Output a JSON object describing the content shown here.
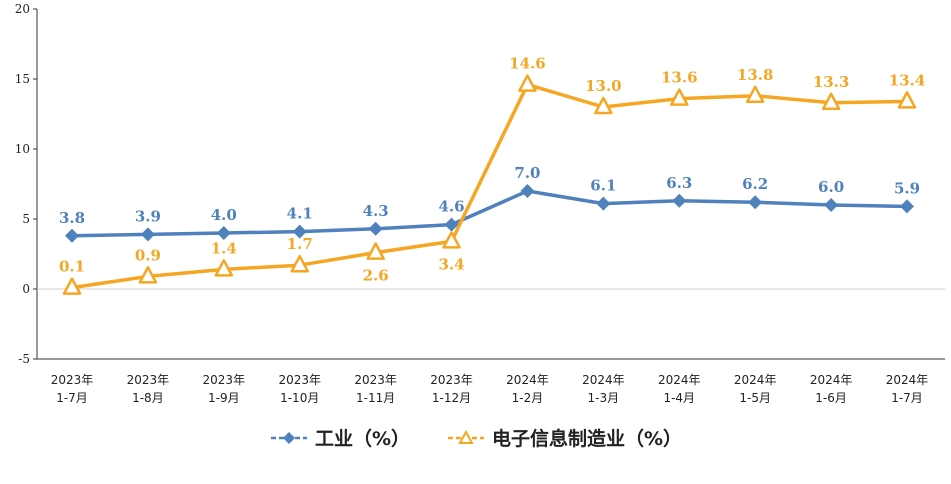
{
  "chart_data": {
    "type": "line",
    "categories": [
      [
        "2023年",
        "1-7月"
      ],
      [
        "2023年",
        "1-8月"
      ],
      [
        "2023年",
        "1-9月"
      ],
      [
        "2023年",
        "1-10月"
      ],
      [
        "2023年",
        "1-11月"
      ],
      [
        "2023年",
        "1-12月"
      ],
      [
        "2024年",
        "1-2月"
      ],
      [
        "2024年",
        "1-3月"
      ],
      [
        "2024年",
        "1-4月"
      ],
      [
        "2024年",
        "1-5月"
      ],
      [
        "2024年",
        "1-6月"
      ],
      [
        "2024年",
        "1-7月"
      ]
    ],
    "series": [
      {
        "name": "工业（%）",
        "color": "#4f81bd",
        "marker": "diamond",
        "values": [
          3.8,
          3.9,
          4.0,
          4.1,
          4.3,
          4.6,
          7.0,
          6.1,
          6.3,
          6.2,
          6.0,
          5.9
        ],
        "labels": [
          "3.8",
          "3.9",
          "4.0",
          "4.1",
          "4.3",
          "4.6",
          "7.0",
          "6.1",
          "6.3",
          "6.2",
          "6.0",
          "5.9"
        ]
      },
      {
        "name": "电子信息制造业（%）",
        "color": "#f5a623",
        "marker": "triangle",
        "values": [
          0.1,
          0.9,
          1.4,
          1.7,
          2.6,
          3.4,
          14.6,
          13.0,
          13.6,
          13.8,
          13.3,
          13.4
        ],
        "labels": [
          "0.1",
          "0.9",
          "1.4",
          "1.7",
          "2.6",
          "3.4",
          "14.6",
          "13.0",
          "13.6",
          "13.8",
          "13.3",
          "13.4"
        ]
      }
    ],
    "ylim": [
      -5,
      20
    ],
    "yticks": [
      "-5",
      "0",
      "5",
      "10",
      "15",
      "20"
    ],
    "grid": false,
    "legend": "bottom"
  }
}
